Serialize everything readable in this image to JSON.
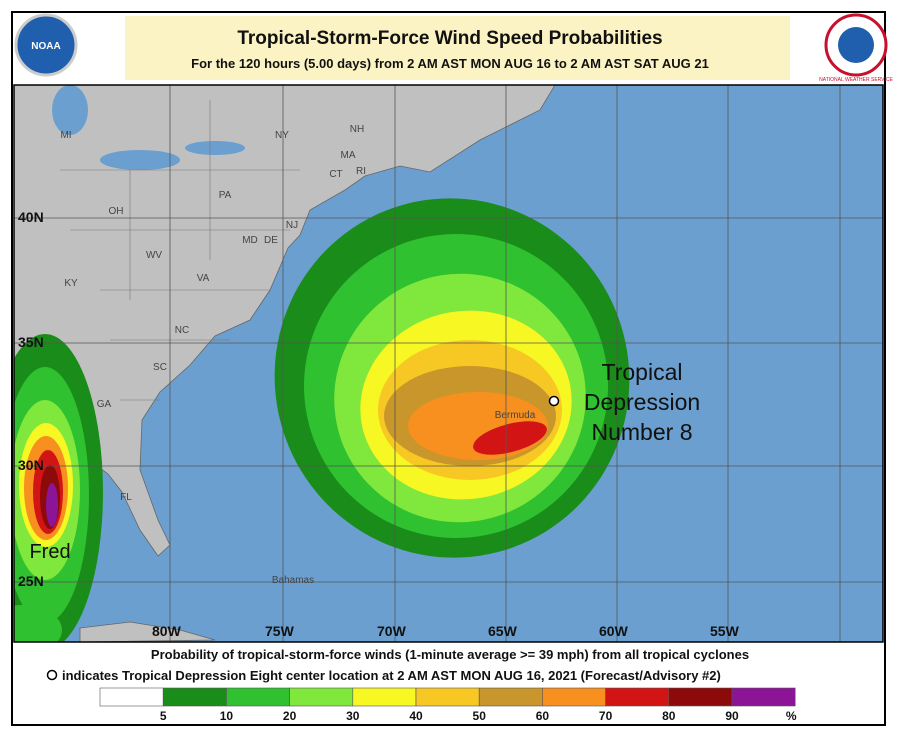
{
  "header": {
    "title": "Tropical-Storm-Force Wind Speed Probabilities",
    "subtitle": "For the 120 hours (5.00 days) from 2 AM AST MON AUG 16 to 2 AM AST SAT AUG 21"
  },
  "logos": {
    "noaa": "NOAA",
    "nws": "NATIONAL WEATHER SERVICE"
  },
  "map": {
    "lat_labels": [
      "40N",
      "35N",
      "30N",
      "25N"
    ],
    "lon_labels": [
      "80W",
      "75W",
      "70W",
      "65W",
      "60W",
      "55W"
    ],
    "state_labels": [
      "MI",
      "NY",
      "NH",
      "MA",
      "CT",
      "RI",
      "PA",
      "NJ",
      "OH",
      "MD",
      "DE",
      "WV",
      "VA",
      "KY",
      "NC",
      "SC",
      "GA",
      "FL"
    ],
    "places": [
      "Bermuda",
      "Bahamas"
    ],
    "storms": [
      {
        "label": [
          "Tropical",
          "Depression",
          "Number 8"
        ]
      },
      {
        "label": [
          "Fred"
        ]
      }
    ]
  },
  "footer": {
    "line1": "Probability of tropical-storm-force winds (1-minute average >= 39 mph) from all tropical cyclones",
    "line2": "indicates Tropical Depression Eight center location at 2 AM AST MON AUG 16, 2021 (Forecast/Advisory #2)"
  },
  "legend": {
    "colors": [
      "#ffffff",
      "#1a8c1a",
      "#2fc12f",
      "#80e83c",
      "#f7f723",
      "#f7c823",
      "#c8962a",
      "#f7901e",
      "#d21414",
      "#8c0a0a",
      "#8c1496"
    ],
    "ticks": [
      5,
      10,
      20,
      30,
      40,
      50,
      60,
      70,
      80,
      90
    ],
    "unit": "%"
  }
}
